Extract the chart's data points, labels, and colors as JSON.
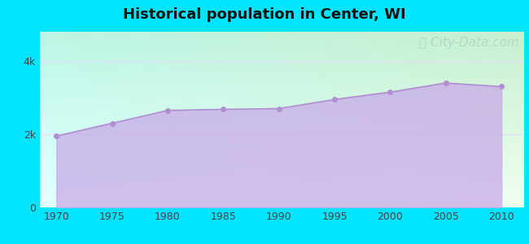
{
  "title": "Historical population in Center, WI",
  "title_fontsize": 13,
  "title_fontweight": "bold",
  "background_outer": "#00e5ff",
  "years": [
    1970,
    1975,
    1980,
    1985,
    1990,
    1995,
    2000,
    2005,
    2010
  ],
  "population": [
    1950,
    2300,
    2650,
    2680,
    2700,
    2950,
    3150,
    3400,
    3300
  ],
  "fill_color": "#c8aae8",
  "fill_alpha": 0.75,
  "line_color": "#b090d0",
  "line_width": 1.2,
  "marker_color": "#b090d0",
  "marker_size": 4,
  "ytick_labels": [
    "0",
    "2k",
    "4k"
  ],
  "ytick_values": [
    0,
    2000,
    4000
  ],
  "ylim": [
    0,
    4800
  ],
  "xlim": [
    1968.5,
    2012
  ],
  "xtick_values": [
    1970,
    1975,
    1980,
    1985,
    1990,
    1995,
    2000,
    2005,
    2010
  ],
  "grid_color": "#e8d8f8",
  "grid_linewidth": 0.7,
  "watermark_text": "City-Data.com",
  "watermark_color": "#a8c0c0",
  "watermark_alpha": 0.55,
  "watermark_fontsize": 11,
  "bg_top_color": "#c8f0d0",
  "bg_bottom_color": "#f0fff0"
}
